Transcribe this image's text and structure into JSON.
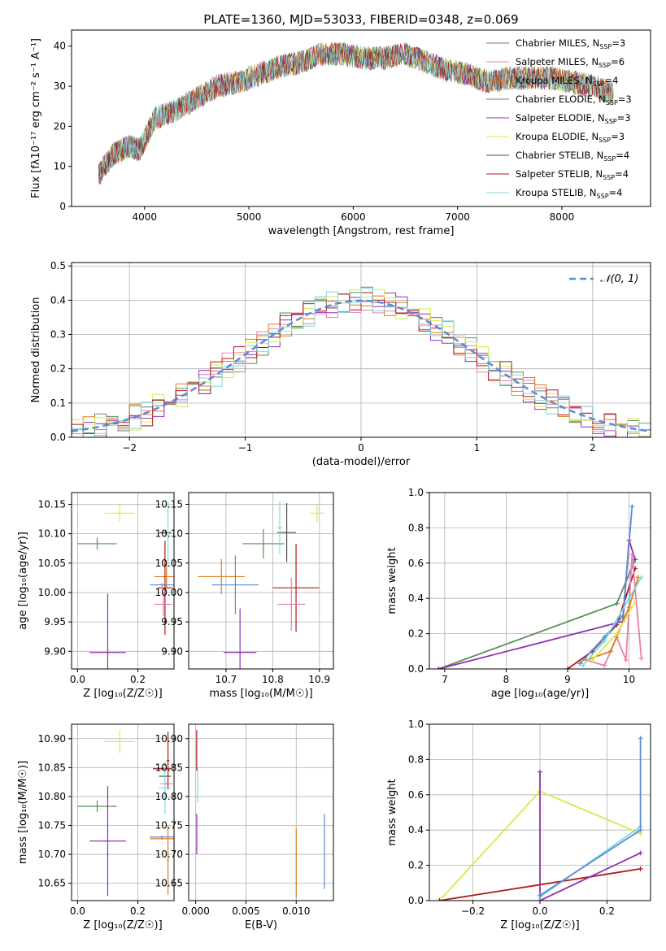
{
  "figure": {
    "title": "PLATE=1360, MJD=53033, FIBERID=0348, z=0.069"
  },
  "colors": {
    "chabrier_miles": "#5a8c5a",
    "salpeter_miles": "#e87fb0",
    "kroupa_miles": "#e07a1a",
    "chabrier_elodie": "#5a8c5a",
    "salpeter_elodie": "#9030b0",
    "kroupa_elodie": "#d8ea4a",
    "chabrier_stelib": "#505050",
    "salpeter_stelib": "#b01818",
    "kroupa_stelib": "#7fd8e0",
    "normal": "#5b8ad8",
    "grid": "#b0b0b0"
  },
  "chart_data": [
    {
      "id": "spectrum",
      "type": "line",
      "title": "PLATE=1360, MJD=53033, FIBERID=0348, z=0.069",
      "xlabel": "wavelength [Angstrom, rest frame]",
      "ylabel": "Flux [fλ10⁻¹⁷ erg cm⁻² s⁻¹ A⁻¹]",
      "xlim": [
        3300,
        8850
      ],
      "ylim": [
        0,
        44
      ],
      "xticks": [
        4000,
        5000,
        6000,
        7000,
        8000
      ],
      "yticks": [
        0,
        10,
        20,
        30,
        40
      ],
      "grid": false,
      "legend": "top-right",
      "x": [
        3560,
        3700,
        3850,
        3950,
        4100,
        4300,
        4500,
        4700,
        4900,
        5100,
        5300,
        5500,
        5700,
        5900,
        6100,
        6300,
        6500,
        6700,
        6900,
        7100,
        7300,
        7500,
        7700,
        7900,
        8100,
        8300,
        8500
      ],
      "y": [
        8,
        13,
        15,
        14,
        22,
        24,
        27,
        30,
        31,
        33,
        35,
        36,
        38,
        38,
        37,
        37,
        38,
        36,
        34,
        33,
        31,
        32,
        32,
        32,
        31,
        30,
        28
      ],
      "series": [
        {
          "name": "Chabrier MILES, N",
          "sub": "SSP",
          "suffix": "=3",
          "color_key": "chabrier_miles"
        },
        {
          "name": "Salpeter MILES, N",
          "sub": "SSP",
          "suffix": "=6",
          "color_key": "salpeter_miles"
        },
        {
          "name": "Kroupa MILES, N",
          "sub": "SSP",
          "suffix": "=4",
          "color_key": "kroupa_miles"
        },
        {
          "name": "Chabrier ELODIE, N",
          "sub": "SSP",
          "suffix": "=3",
          "color_key": "chabrier_elodie"
        },
        {
          "name": "Salpeter ELODIE, N",
          "sub": "SSP",
          "suffix": "=3",
          "color_key": "salpeter_elodie"
        },
        {
          "name": "Kroupa ELODIE, N",
          "sub": "SSP",
          "suffix": "=3",
          "color_key": "kroupa_elodie"
        },
        {
          "name": "Chabrier STELIB, N",
          "sub": "SSP",
          "suffix": "=4",
          "color_key": "chabrier_stelib"
        },
        {
          "name": "Salpeter STELIB, N",
          "sub": "SSP",
          "suffix": "=4",
          "color_key": "salpeter_stelib"
        },
        {
          "name": "Kroupa STELIB, N",
          "sub": "SSP",
          "suffix": "=4",
          "color_key": "kroupa_stelib"
        }
      ]
    },
    {
      "id": "residuals",
      "type": "line",
      "xlabel": "(data-model)/error",
      "ylabel": "Normed distribution",
      "xlim": [
        -2.5,
        2.5
      ],
      "ylim": [
        0,
        0.51
      ],
      "xticks": [
        -2,
        -1,
        0,
        1,
        2
      ],
      "yticks": [
        0.0,
        0.1,
        0.2,
        0.3,
        0.4,
        0.5
      ],
      "grid": true,
      "legend": "top-right",
      "normal_label": "𝒩(0, 1)",
      "bin_width": 0.1,
      "hist_series": [
        {
          "color_key": "chabrier_miles",
          "seed": 1
        },
        {
          "color_key": "salpeter_miles",
          "seed": 2
        },
        {
          "color_key": "kroupa_miles",
          "seed": 3
        },
        {
          "color_key": "salpeter_elodie",
          "seed": 4
        },
        {
          "color_key": "kroupa_elodie",
          "seed": 5
        },
        {
          "color_key": "salpeter_stelib",
          "seed": 6
        },
        {
          "color_key": "kroupa_stelib",
          "seed": 7
        }
      ]
    },
    {
      "id": "age_vs_Z",
      "type": "scatter",
      "xlabel": "Z [log₁₀(Z/Z☉)]",
      "ylabel": "age  [log₁₀(age/yr)]",
      "xlim": [
        -0.02,
        0.32
      ],
      "ylim": [
        9.87,
        10.17
      ],
      "xticks": [
        0.0,
        0.2
      ],
      "yticks": [
        9.9,
        9.95,
        10.0,
        10.05,
        10.1,
        10.15
      ],
      "grid": true,
      "points": [
        {
          "x": 0.14,
          "y": 10.135,
          "xerr": 0.05,
          "yerr": 0.015,
          "color_key": "kroupa_elodie"
        },
        {
          "x": 0.065,
          "y": 10.083,
          "xerr": 0.065,
          "yerr": 0.01,
          "color_key": "chabrier_elodie"
        },
        {
          "x": 0.1,
          "y": 9.898,
          "xerr": 0.06,
          "yerr": 0.1,
          "color_key": "salpeter_elodie"
        },
        {
          "x": 0.292,
          "y": 10.102,
          "xerr": 0.02,
          "yerr": 0.003,
          "color_key": "chabrier_stelib"
        },
        {
          "x": 0.295,
          "y": 10.027,
          "xerr": 0.04,
          "yerr": 0.02,
          "color_key": "kroupa_miles"
        },
        {
          "x": 0.28,
          "y": 10.013,
          "xerr": 0.04,
          "yerr": 0.003,
          "color_key": "normal"
        },
        {
          "x": 0.29,
          "y": 10.008,
          "xerr": 0.025,
          "yerr": 0.08,
          "color_key": "salpeter_stelib"
        },
        {
          "x": 0.285,
          "y": 9.98,
          "xerr": 0.03,
          "yerr": 0.02,
          "color_key": "salpeter_miles"
        },
        {
          "x": 0.3,
          "y": 10.1,
          "xerr": 0.005,
          "yerr": 0.055,
          "color_key": "kroupa_stelib"
        }
      ]
    },
    {
      "id": "age_vs_mass",
      "type": "scatter",
      "xlabel": "mass [log₁₀(M/M☉)]",
      "ylabel": "",
      "xlim": [
        10.62,
        10.93
      ],
      "ylim": [
        9.87,
        10.17
      ],
      "xticks": [
        10.7,
        10.8,
        10.9
      ],
      "yticks": [
        9.9,
        9.95,
        10.0,
        10.05,
        10.1,
        10.15
      ],
      "grid": true,
      "points": [
        {
          "x": 10.895,
          "y": 10.135,
          "xerr": 0.015,
          "yerr": 0.015,
          "color_key": "kroupa_elodie"
        },
        {
          "x": 10.78,
          "y": 10.083,
          "xerr": 0.045,
          "yerr": 0.025,
          "color_key": "chabrier_elodie"
        },
        {
          "x": 10.83,
          "y": 10.102,
          "xerr": 0.02,
          "yerr": 0.05,
          "color_key": "chabrier_stelib"
        },
        {
          "x": 10.815,
          "y": 10.11,
          "xerr": 0.005,
          "yerr": 0.045,
          "color_key": "kroupa_stelib"
        },
        {
          "x": 10.69,
          "y": 10.027,
          "xerr": 0.05,
          "yerr": 0.03,
          "color_key": "kroupa_miles"
        },
        {
          "x": 10.72,
          "y": 10.013,
          "xerr": 0.05,
          "yerr": 0.05,
          "color_key": "normal"
        },
        {
          "x": 10.85,
          "y": 10.008,
          "xerr": 0.05,
          "yerr": 0.075,
          "color_key": "salpeter_stelib"
        },
        {
          "x": 10.84,
          "y": 9.98,
          "xerr": 0.03,
          "yerr": 0.045,
          "color_key": "salpeter_miles"
        },
        {
          "x": 10.73,
          "y": 9.898,
          "xerr": 0.035,
          "yerr": 0.075,
          "color_key": "salpeter_elodie"
        }
      ]
    },
    {
      "id": "weight_vs_age",
      "type": "line",
      "xlabel": "age  [log₁₀(age/yr)]",
      "ylabel": "mass weight",
      "xlim": [
        6.75,
        10.35
      ],
      "ylim": [
        0,
        1.0
      ],
      "xticks": [
        7,
        8,
        9,
        10
      ],
      "yticks": [
        0.0,
        0.2,
        0.4,
        0.6,
        0.8,
        1.0
      ],
      "grid": true,
      "series": [
        {
          "color_key": "chabrier_elodie",
          "x": [
            6.9,
            9.8,
            10.1
          ],
          "y": [
            0.0,
            0.37,
            0.62
          ]
        },
        {
          "color_key": "salpeter_elodie",
          "x": [
            6.9,
            9.9,
            10.0,
            10.1
          ],
          "y": [
            0.0,
            0.27,
            0.73,
            0.62
          ]
        },
        {
          "color_key": "salpeter_stelib",
          "x": [
            9.0,
            9.4,
            9.8,
            10.1
          ],
          "y": [
            0.0,
            0.1,
            0.25,
            0.57
          ]
        },
        {
          "color_key": "normal",
          "x": [
            9.2,
            9.6,
            9.9,
            10.05
          ],
          "y": [
            0.03,
            0.18,
            0.3,
            0.92
          ]
        },
        {
          "color_key": "salpeter_miles",
          "x": [
            9.3,
            9.6,
            9.8,
            9.95,
            10.05,
            10.2
          ],
          "y": [
            0.05,
            0.02,
            0.18,
            0.05,
            0.65,
            0.06
          ]
        },
        {
          "color_key": "kroupa_miles",
          "x": [
            9.3,
            9.7,
            10.0,
            10.15
          ],
          "y": [
            0.05,
            0.1,
            0.35,
            0.52
          ]
        },
        {
          "color_key": "kroupa_elodie",
          "x": [
            9.4,
            9.8,
            10.1
          ],
          "y": [
            0.05,
            0.2,
            0.38
          ]
        },
        {
          "color_key": "kroupa_stelib",
          "x": [
            9.25,
            9.6,
            10.0,
            10.2
          ],
          "y": [
            0.02,
            0.16,
            0.4,
            0.52
          ]
        }
      ]
    },
    {
      "id": "mass_vs_Z",
      "type": "scatter",
      "xlabel": "Z [log₁₀(Z/Z☉)]",
      "ylabel": "mass [log₁₀(M/M☉)]",
      "xlim": [
        -0.02,
        0.32
      ],
      "ylim": [
        10.62,
        10.925
      ],
      "xticks": [
        0.0,
        0.2
      ],
      "yticks": [
        10.65,
        10.7,
        10.75,
        10.8,
        10.85,
        10.9
      ],
      "grid": true,
      "points": [
        {
          "x": 0.14,
          "y": 10.895,
          "xerr": 0.05,
          "yerr": 0.02,
          "color_key": "kroupa_elodie"
        },
        {
          "x": 0.065,
          "y": 10.783,
          "xerr": 0.065,
          "yerr": 0.01,
          "color_key": "chabrier_elodie"
        },
        {
          "x": 0.1,
          "y": 10.723,
          "xerr": 0.06,
          "yerr": 0.095,
          "color_key": "salpeter_elodie"
        },
        {
          "x": 0.28,
          "y": 10.848,
          "xerr": 0.03,
          "yerr": 0.002,
          "color_key": "salpeter_stelib"
        },
        {
          "x": 0.29,
          "y": 10.835,
          "xerr": 0.02,
          "yerr": 0.002,
          "color_key": "chabrier_stelib"
        },
        {
          "x": 0.3,
          "y": 10.862,
          "xerr": 0.005,
          "yerr": 0.05,
          "color_key": "salpeter_stelib"
        },
        {
          "x": 0.295,
          "y": 10.822,
          "xerr": 0.02,
          "yerr": 0.002,
          "color_key": "salpeter_miles"
        },
        {
          "x": 0.29,
          "y": 10.815,
          "xerr": 0.02,
          "yerr": 0.045,
          "color_key": "kroupa_stelib"
        },
        {
          "x": 0.28,
          "y": 10.73,
          "xerr": 0.04,
          "yerr": 0.002,
          "color_key": "normal"
        },
        {
          "x": 0.28,
          "y": 10.727,
          "xerr": 0.04,
          "yerr": 0.002,
          "color_key": "kroupa_miles"
        },
        {
          "x": 0.3,
          "y": 10.69,
          "xerr": 0.003,
          "yerr": 0.06,
          "color_key": "kroupa_miles"
        }
      ]
    },
    {
      "id": "mass_vs_ebv",
      "type": "scatter",
      "xlabel": "E(B-V)",
      "ylabel": "",
      "xlim": [
        -0.0007,
        0.0137
      ],
      "ylim": [
        10.62,
        10.925
      ],
      "xticks": [
        0.0,
        0.005,
        0.01
      ],
      "xticklabels": [
        "0.000",
        "0.005",
        "0.010"
      ],
      "yticks": [
        10.65,
        10.7,
        10.75,
        10.8,
        10.85,
        10.9
      ],
      "grid": true,
      "points": [
        {
          "x": 0.0001,
          "y": 10.88,
          "xerr": 0,
          "yerr": 0.035,
          "color_key": "salpeter_stelib"
        },
        {
          "x": 0.0002,
          "y": 10.82,
          "xerr": 0,
          "yerr": 0.03,
          "color_key": "kroupa_stelib"
        },
        {
          "x": 0.0001,
          "y": 10.735,
          "xerr": 0,
          "yerr": 0.035,
          "color_key": "salpeter_elodie"
        },
        {
          "x": 0.01,
          "y": 10.685,
          "xerr": 0,
          "yerr": 0.06,
          "color_key": "kroupa_miles"
        },
        {
          "x": 0.0128,
          "y": 10.705,
          "xerr": 0,
          "yerr": 0.065,
          "color_key": "normal"
        }
      ]
    },
    {
      "id": "weight_vs_Z",
      "type": "line",
      "xlabel": "Z [log₁₀(Z/Z☉)]",
      "ylabel": "mass weight",
      "xlim": [
        -0.33,
        0.33
      ],
      "ylim": [
        0,
        1.0
      ],
      "xticks": [
        -0.2,
        0.0,
        0.2
      ],
      "yticks": [
        0.0,
        0.2,
        0.4,
        0.6,
        0.8,
        1.0
      ],
      "grid": true,
      "series": [
        {
          "color_key": "kroupa_elodie",
          "x": [
            -0.3,
            0.0,
            0.3
          ],
          "y": [
            0.0,
            0.62,
            0.38
          ]
        },
        {
          "color_key": "salpeter_stelib",
          "x": [
            -0.3,
            0.3
          ],
          "y": [
            0.0,
            0.18
          ]
        },
        {
          "color_key": "salpeter_elodie",
          "x": [
            0.0,
            0.0,
            0.3
          ],
          "y": [
            0.73,
            0.0,
            0.27
          ]
        },
        {
          "color_key": "kroupa_stelib",
          "x": [
            0.0,
            0.3
          ],
          "y": [
            0.02,
            0.42
          ]
        },
        {
          "color_key": "normal",
          "x": [
            0.0,
            0.3,
            0.3
          ],
          "y": [
            0.03,
            0.4,
            0.92
          ]
        }
      ]
    }
  ]
}
